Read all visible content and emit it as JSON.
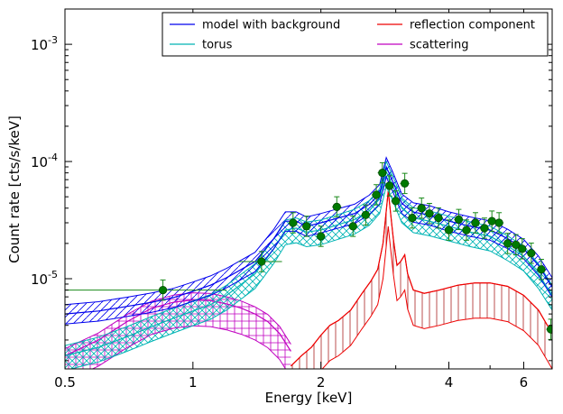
{
  "chart_data": {
    "type": "line",
    "xlabel": "Energy [keV]",
    "ylabel": "Count rate [cts/s/keV]",
    "xscale": "log",
    "yscale": "log",
    "xlim": [
      0.5,
      7.0
    ],
    "ylim": [
      1.7e-06,
      0.002
    ],
    "grid": false,
    "legend_position": "top-right",
    "x_ticks": [
      {
        "value": 0.5,
        "label": "0.5"
      },
      {
        "value": 1,
        "label": "1"
      },
      {
        "value": 2,
        "label": "2"
      },
      {
        "value": 4,
        "label": "4"
      },
      {
        "value": 6,
        "label": "6"
      }
    ],
    "y_ticks": [
      {
        "value": 1e-05,
        "base": "10",
        "exp": "-5"
      },
      {
        "value": 0.0001,
        "base": "10",
        "exp": "-4"
      },
      {
        "value": 0.001,
        "base": "10",
        "exp": "-3"
      }
    ],
    "legend": [
      {
        "name": "model with background",
        "color": "#0000ee"
      },
      {
        "name": "reflection component",
        "color": "#ee0000"
      },
      {
        "name": "torus",
        "color": "#00b4b4"
      },
      {
        "name": "scattering",
        "color": "#c000c0"
      }
    ],
    "series": [
      {
        "name": "model with background",
        "color": "#0000ee",
        "x": [
          0.5,
          0.6,
          0.7,
          0.8,
          0.9,
          1.0,
          1.1,
          1.2,
          1.4,
          1.55,
          1.65,
          1.75,
          1.85,
          2.0,
          2.2,
          2.4,
          2.6,
          2.75,
          2.85,
          2.95,
          3.1,
          3.3,
          3.6,
          4.0,
          4.5,
          5.0,
          5.5,
          6.0,
          6.5,
          7.0
        ],
        "y": [
          5e-06,
          5.3e-06,
          5.8e-06,
          6.3e-06,
          6.9e-06,
          7.8e-06,
          8.8e-06,
          1.02e-05,
          1.4e-05,
          2.2e-05,
          3.1e-05,
          3.1e-05,
          2.8e-05,
          3e-05,
          3.3e-05,
          3.6e-05,
          4.3e-05,
          5.3e-05,
          9e-05,
          6.8e-05,
          4.4e-05,
          3.7e-05,
          3.5e-05,
          3.1e-05,
          2.8e-05,
          2.6e-05,
          2.2e-05,
          1.8e-05,
          1.3e-05,
          8.5e-06
        ]
      },
      {
        "name": "torus",
        "color": "#00b4b4",
        "x": [
          0.5,
          0.6,
          0.7,
          0.8,
          0.9,
          1.0,
          1.1,
          1.2,
          1.4,
          1.55,
          1.65,
          1.75,
          1.85,
          2.0,
          2.2,
          2.4,
          2.6,
          2.75,
          2.85,
          2.95,
          3.1,
          3.3,
          3.6,
          4.0,
          4.5,
          5.0,
          5.5,
          6.0,
          6.5,
          7.0
        ],
        "y": [
          2.2e-06,
          2.6e-06,
          3.2e-06,
          3.9e-06,
          4.6e-06,
          5.3e-06,
          6e-06,
          7.2e-06,
          1.1e-05,
          1.8e-05,
          2.6e-05,
          2.7e-05,
          2.5e-05,
          2.6e-05,
          2.9e-05,
          3.2e-05,
          3.8e-05,
          4.8e-05,
          8.2e-05,
          6.2e-05,
          4e-05,
          3.3e-05,
          3.1e-05,
          2.8e-05,
          2.5e-05,
          2.3e-05,
          1.9e-05,
          1.55e-05,
          1.1e-05,
          7.2e-06
        ]
      },
      {
        "name": "reflection component",
        "color": "#ee0000",
        "x": [
          1.7,
          1.8,
          1.9,
          2.0,
          2.1,
          2.2,
          2.35,
          2.5,
          2.62,
          2.72,
          2.8,
          2.88,
          2.96,
          3.02,
          3.08,
          3.15,
          3.2,
          3.3,
          3.5,
          3.8,
          4.2,
          4.6,
          5.0,
          5.5,
          6.0,
          6.5,
          7.0
        ],
        "y": [
          1.8e-06,
          2.2e-06,
          2.6e-06,
          3.3e-06,
          4e-06,
          4.4e-06,
          5.4e-06,
          7.5e-06,
          9.5e-06,
          1.2e-05,
          2e-05,
          5.6e-05,
          2.2e-05,
          1.3e-05,
          1.4e-05,
          1.6e-05,
          1.1e-05,
          8e-06,
          7.5e-06,
          8e-06,
          8.8e-06,
          9.2e-06,
          9.2e-06,
          8.6e-06,
          7.2e-06,
          5.4e-06,
          3.4e-06
        ]
      },
      {
        "name": "scattering",
        "color": "#c000c0",
        "x": [
          0.5,
          0.6,
          0.7,
          0.8,
          0.9,
          1.0,
          1.1,
          1.2,
          1.3,
          1.4,
          1.5,
          1.6,
          1.7
        ],
        "y": [
          2.2e-06,
          3e-06,
          4.3e-06,
          5.6e-06,
          6.3e-06,
          6.6e-06,
          6.5e-06,
          6.1e-06,
          5.6e-06,
          5e-06,
          4.3e-06,
          3.4e-06,
          2.4e-06
        ]
      }
    ],
    "data_points": {
      "color": "#1a8a1a",
      "points": [
        {
          "x": 0.85,
          "y": 8e-06,
          "xerr": [
            0.5,
            1.2
          ]
        },
        {
          "x": 1.45,
          "y": 1.4e-05,
          "xerr": [
            1.28,
            1.62
          ]
        },
        {
          "x": 1.72,
          "y": 3e-05
        },
        {
          "x": 1.85,
          "y": 2.8e-05
        },
        {
          "x": 2.0,
          "y": 2.3e-05
        },
        {
          "x": 2.18,
          "y": 4.1e-05
        },
        {
          "x": 2.38,
          "y": 2.8e-05
        },
        {
          "x": 2.55,
          "y": 3.5e-05
        },
        {
          "x": 2.7,
          "y": 5.2e-05
        },
        {
          "x": 2.79,
          "y": 8e-05
        },
        {
          "x": 2.9,
          "y": 6.2e-05
        },
        {
          "x": 3.0,
          "y": 4.6e-05
        },
        {
          "x": 3.15,
          "y": 6.5e-05
        },
        {
          "x": 3.28,
          "y": 3.3e-05
        },
        {
          "x": 3.45,
          "y": 4e-05
        },
        {
          "x": 3.6,
          "y": 3.6e-05
        },
        {
          "x": 3.78,
          "y": 3.3e-05
        },
        {
          "x": 4.0,
          "y": 2.6e-05
        },
        {
          "x": 4.22,
          "y": 3.2e-05
        },
        {
          "x": 4.4,
          "y": 2.6e-05
        },
        {
          "x": 4.62,
          "y": 3e-05
        },
        {
          "x": 4.85,
          "y": 2.7e-05
        },
        {
          "x": 5.05,
          "y": 3.1e-05
        },
        {
          "x": 5.25,
          "y": 3e-05
        },
        {
          "x": 5.5,
          "y": 2e-05
        },
        {
          "x": 5.75,
          "y": 1.95e-05
        },
        {
          "x": 5.95,
          "y": 1.8e-05
        },
        {
          "x": 6.25,
          "y": 1.65e-05
        },
        {
          "x": 6.6,
          "y": 1.2e-05
        },
        {
          "x": 6.95,
          "y": 3.7e-06
        }
      ]
    }
  }
}
